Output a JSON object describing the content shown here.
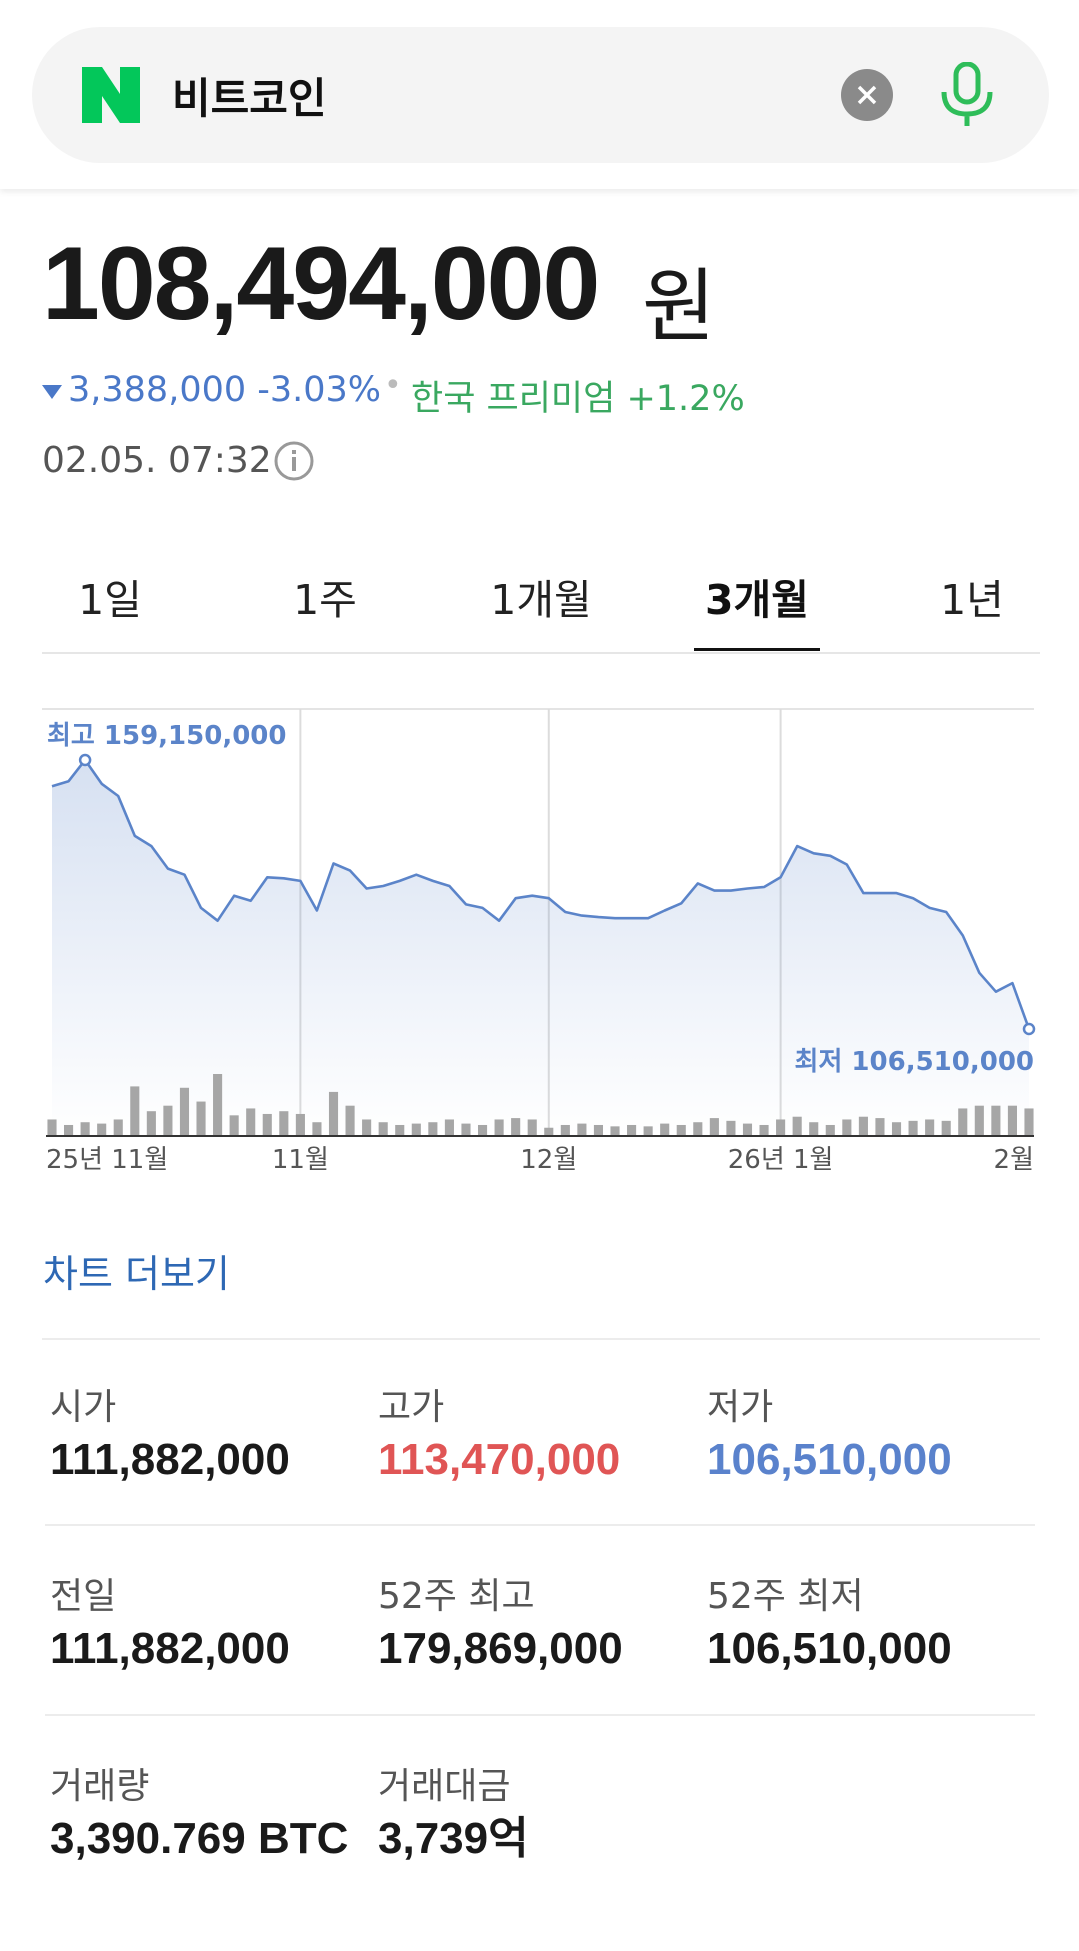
{
  "search": {
    "query": "비트코인"
  },
  "quote": {
    "price": "108,494,000",
    "unit": "원",
    "change": "3,388,000 -3.03%",
    "premium": "한국 프리미엄 +1.2%",
    "time": "02.05. 07:32"
  },
  "tabs": {
    "items": [
      "1일",
      "1주",
      "1개월",
      "3개월",
      "1년"
    ],
    "selected": 3
  },
  "chart_data": {
    "type": "line",
    "categories": [
      "25년 11월",
      null,
      null,
      null,
      null,
      null,
      null,
      null,
      null,
      null,
      null,
      null,
      null,
      null,
      null,
      "11월",
      null,
      null,
      null,
      null,
      null,
      null,
      null,
      null,
      null,
      null,
      null,
      null,
      null,
      null,
      "12월",
      null,
      null,
      null,
      null,
      null,
      null,
      null,
      null,
      null,
      null,
      null,
      null,
      null,
      "26년 1월",
      null,
      null,
      null,
      null,
      null,
      null,
      null,
      null,
      null,
      null,
      null,
      null,
      null,
      null,
      "2월"
    ],
    "series": [
      {
        "color": "#5b84c9",
        "values": [
          154000000,
          155000000,
          159150000,
          154500000,
          152100000,
          144300000,
          142300000,
          137900000,
          136700000,
          130200000,
          127700000,
          132600000,
          131600000,
          136200000,
          136000000,
          135500000,
          129700000,
          138900000,
          137500000,
          134000000,
          134500000,
          135500000,
          136700000,
          135500000,
          134500000,
          130900000,
          130200000,
          127700000,
          132100000,
          132600000,
          132100000,
          129400000,
          128700000,
          128400000,
          128200000,
          128200000,
          128200000,
          129700000,
          131100000,
          135000000,
          133600000,
          133600000,
          134000000,
          134300000,
          136200000,
          142300000,
          140900000,
          140400000,
          138700000,
          133100000,
          133100000,
          133100000,
          132100000,
          130200000,
          129400000,
          124800000,
          117500000,
          113800000,
          115500000,
          106510000
        ]
      }
    ],
    "volume": {
      "color": "#a6a6a6",
      "values": [
        12,
        8,
        10,
        9,
        12,
        36,
        18,
        22,
        35,
        25,
        45,
        15,
        20,
        16,
        18,
        16,
        10,
        32,
        22,
        12,
        10,
        8,
        9,
        10,
        12,
        9,
        8,
        12,
        13,
        12,
        6,
        8,
        9,
        8,
        7,
        8,
        7,
        9,
        8,
        10,
        13,
        11,
        9,
        8,
        12,
        14,
        10,
        8,
        12,
        14,
        13,
        10,
        11,
        12,
        11,
        20,
        22,
        22,
        22,
        20
      ]
    },
    "high_label": "최고 159,150,000",
    "low_label": "최저 106,510,000",
    "grid": true
  },
  "more_link": "차트 더보기",
  "stats": [
    {
      "label": "시가",
      "value": "111,882,000",
      "color": "#1a1a1a"
    },
    {
      "label": "고가",
      "value": "113,470,000",
      "color": "#e05555"
    },
    {
      "label": "저가",
      "value": "106,510,000",
      "color": "#5a82cc"
    },
    {
      "label": "전일",
      "value": "111,882,000",
      "color": "#1a1a1a"
    },
    {
      "label": "52주 최고",
      "value": "179,869,000",
      "color": "#1a1a1a"
    },
    {
      "label": "52주 최저",
      "value": "106,510,000",
      "color": "#1a1a1a"
    },
    {
      "label": "거래량",
      "value": "3,390.769 BTC",
      "color": "#1a1a1a"
    },
    {
      "label": "거래대금",
      "value": "3,739억",
      "color": "#1a1a1a"
    }
  ]
}
